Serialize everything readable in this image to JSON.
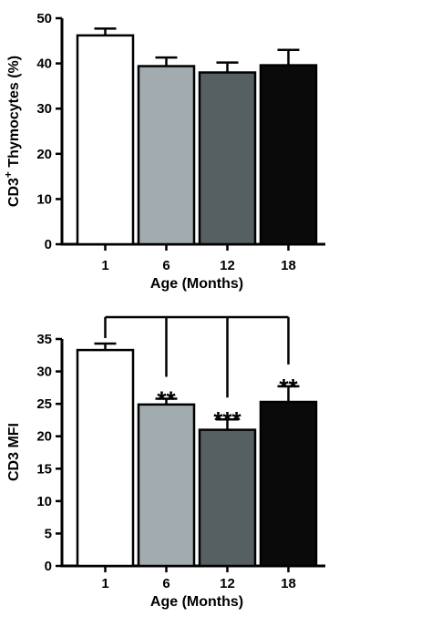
{
  "chart_data": [
    {
      "type": "bar",
      "categories": [
        "1",
        "6",
        "12",
        "18"
      ],
      "values": [
        46.2,
        39.4,
        38.0,
        39.6
      ],
      "errors": [
        1.5,
        1.9,
        2.2,
        3.4
      ],
      "colors": [
        "#ffffff",
        "#a2abaf",
        "#565f61",
        "#0a0a0a"
      ],
      "xlabel": "Age (Months)",
      "ylabel_prefix": "CD3",
      "ylabel_sup": "+",
      "ylabel_suffix": " Thymocytes (%)",
      "ylim": [
        0,
        50
      ],
      "yticks": [
        "0",
        "10",
        "20",
        "30",
        "40",
        "50"
      ],
      "grid": false,
      "legend": "none"
    },
    {
      "type": "bar",
      "categories": [
        "1",
        "6",
        "12",
        "18"
      ],
      "values": [
        33.3,
        24.9,
        21.0,
        25.3
      ],
      "errors": [
        1.0,
        0.9,
        1.6,
        2.4
      ],
      "colors": [
        "#ffffff",
        "#a2abaf",
        "#565f61",
        "#0a0a0a"
      ],
      "xlabel": "Age (Months)",
      "ylabel": "CD3 MFI",
      "ylim": [
        0,
        35
      ],
      "yticks": [
        "0",
        "5",
        "10",
        "15",
        "20",
        "25",
        "30",
        "35"
      ],
      "significance": [
        "",
        "**",
        "***",
        "**"
      ],
      "comparison_bracket": "from bar 1 to bars 6, 12, 18",
      "grid": false,
      "legend": "none"
    }
  ]
}
